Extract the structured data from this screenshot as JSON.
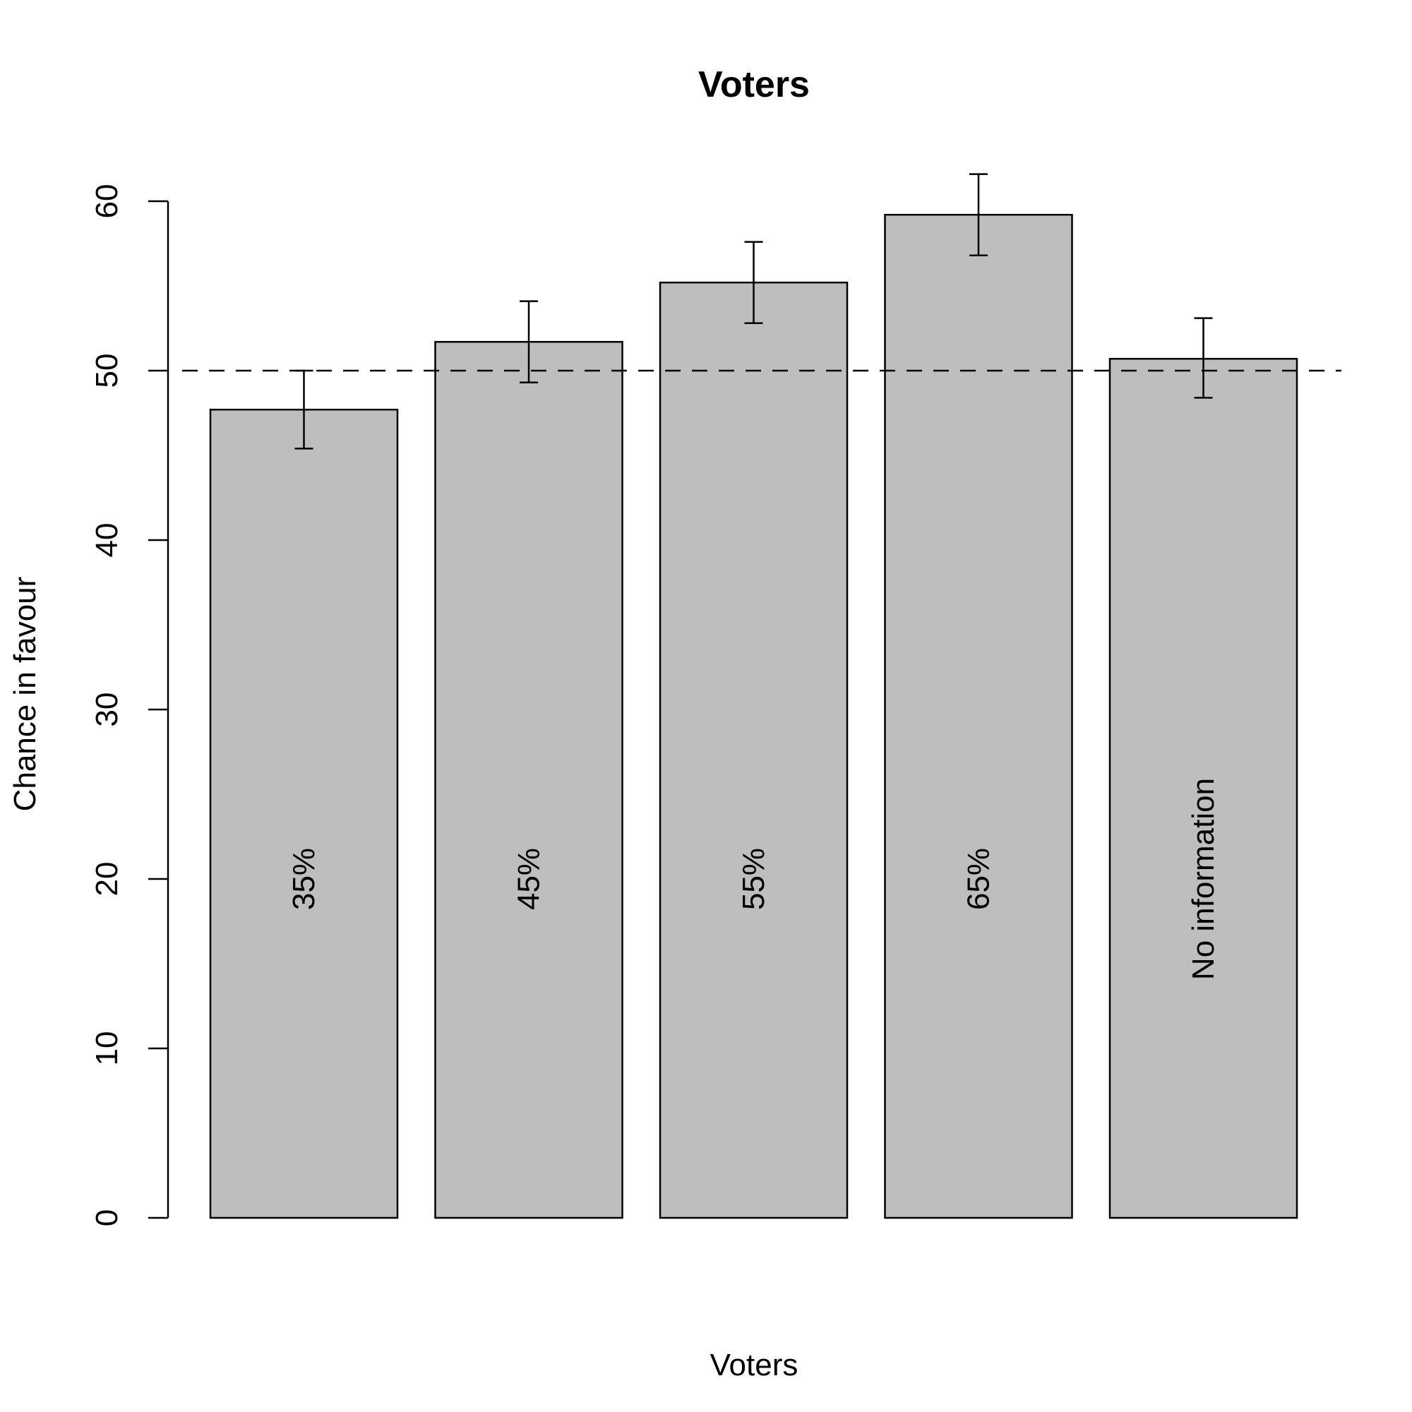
{
  "chart_data": {
    "type": "bar",
    "title": "Voters",
    "xlabel": "Voters",
    "ylabel": "Chance in favour",
    "categories": [
      "35%",
      "45%",
      "55%",
      "65%",
      "No information"
    ],
    "values": [
      47.7,
      51.7,
      55.2,
      59.2,
      50.7
    ],
    "error_bars": [
      {
        "low": 45.4,
        "high": 50.0
      },
      {
        "low": 49.3,
        "high": 54.1
      },
      {
        "low": 52.8,
        "high": 57.6
      },
      {
        "low": 56.8,
        "high": 61.6
      },
      {
        "low": 48.4,
        "high": 53.1
      }
    ],
    "reference_line": {
      "y": 50,
      "style": "dashed"
    },
    "ylim": [
      0,
      60
    ],
    "yticks": [
      0,
      10,
      20,
      30,
      40,
      50,
      60
    ],
    "bar_color": "#bebebe",
    "grid": false,
    "legend": "none"
  }
}
